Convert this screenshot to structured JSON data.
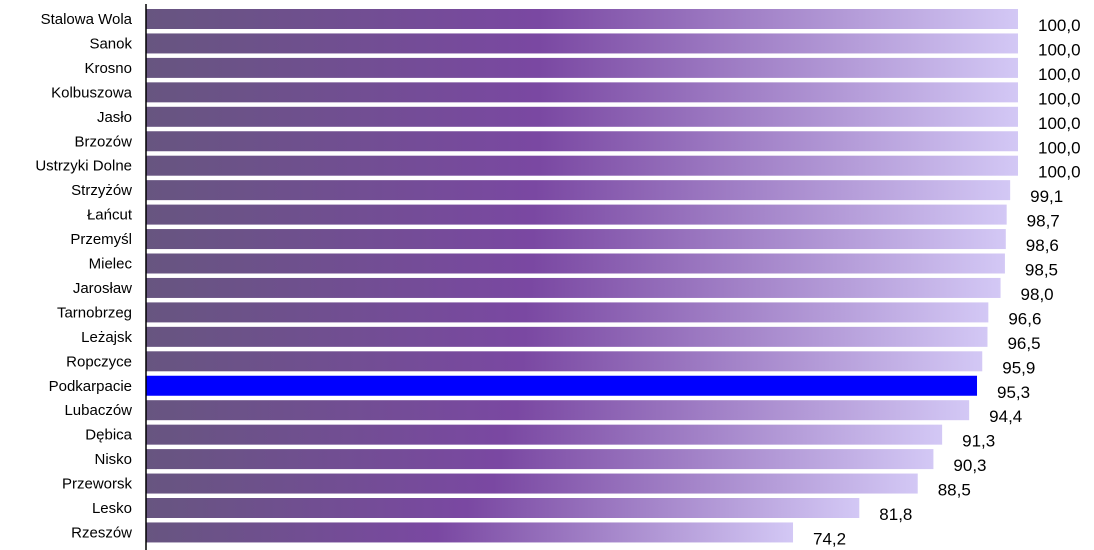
{
  "chart_data": {
    "type": "bar",
    "orientation": "horizontal",
    "categories": [
      "Stalowa Wola",
      "Sanok",
      "Krosno",
      "Kolbuszowa",
      "Jasło",
      "Brzozów",
      "Ustrzyki Dolne",
      "Strzyżów",
      "Łańcut",
      "Przemyśl",
      "Mielec",
      "Jarosław",
      "Tarnobrzeg",
      "Leżajsk",
      "Ropczyce",
      "Podkarpacie",
      "Lubaczów",
      "Dębica",
      "Nisko",
      "Przeworsk",
      "Lesko",
      "Rzeszów"
    ],
    "values": [
      100.0,
      100.0,
      100.0,
      100.0,
      100.0,
      100.0,
      100.0,
      99.1,
      98.7,
      98.6,
      98.5,
      98.0,
      96.6,
      96.5,
      95.9,
      95.3,
      94.4,
      91.3,
      90.3,
      88.5,
      81.8,
      74.2
    ],
    "value_labels": [
      "100,0",
      "100,0",
      "100,0",
      "100,0",
      "100,0",
      "100,0",
      "100,0",
      "99,1",
      "98,7",
      "98,6",
      "98,5",
      "98,0",
      "96,6",
      "96,5",
      "95,9",
      "95,3",
      "94,4",
      "91,3",
      "90,3",
      "88,5",
      "81,8",
      "74,2"
    ],
    "highlight_category": "Podkarpacie",
    "xlim": [
      0,
      100
    ],
    "title": "",
    "xlabel": "",
    "ylabel": "",
    "grid": false,
    "legend": "none",
    "colors": {
      "bar_gradient_start": "#675580",
      "bar_gradient_mid": "#7a48a2",
      "bar_gradient_end": "#d3c8f5",
      "highlight": "#0000ff",
      "axis": "#000000",
      "text": "#000000"
    }
  }
}
